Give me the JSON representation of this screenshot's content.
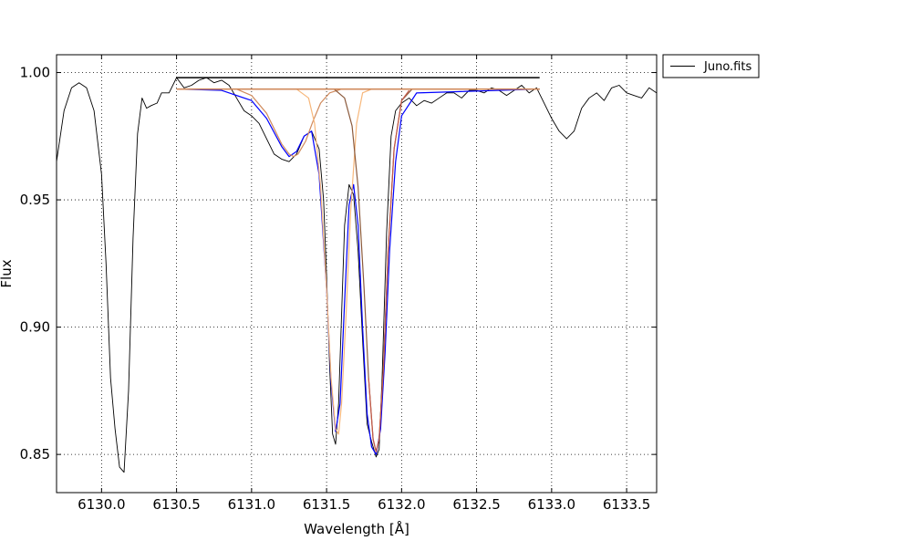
{
  "chart_data": {
    "type": "line",
    "title": "",
    "xlabel": "Wavelength [Å]",
    "ylabel": "Flux",
    "xlim": [
      6129.7,
      6133.7
    ],
    "ylim": [
      0.835,
      1.007
    ],
    "xticks": [
      "6130.0",
      "6130.5",
      "6131.0",
      "6131.5",
      "6132.0",
      "6132.5",
      "6133.0",
      "6133.5"
    ],
    "yticks": [
      "0.85",
      "0.90",
      "0.95",
      "1.00"
    ],
    "grid": true,
    "legend": {
      "placement": "outside-top-right",
      "entries": [
        "Juno.fits"
      ]
    },
    "series": [
      {
        "name": "Juno.fits",
        "color": "#000000",
        "x": [
          6129.7,
          6129.75,
          6129.8,
          6129.85,
          6129.9,
          6129.95,
          6130.0,
          6130.03,
          6130.06,
          6130.09,
          6130.12,
          6130.15,
          6130.18,
          6130.21,
          6130.24,
          6130.27,
          6130.3,
          6130.33,
          6130.37,
          6130.4,
          6130.45,
          6130.5,
          6130.55,
          6130.6,
          6130.65,
          6130.7,
          6130.75,
          6130.8,
          6130.85,
          6130.9,
          6130.95,
          6131.0,
          6131.05,
          6131.1,
          6131.15,
          6131.2,
          6131.25,
          6131.3,
          6131.35,
          6131.4,
          6131.45,
          6131.48,
          6131.5,
          6131.52,
          6131.54,
          6131.56,
          6131.58,
          6131.6,
          6131.62,
          6131.65,
          6131.68,
          6131.71,
          6131.74,
          6131.77,
          6131.8,
          6131.83,
          6131.85,
          6131.87,
          6131.9,
          6131.93,
          6131.96,
          6132.0,
          6132.05,
          6132.1,
          6132.15,
          6132.2,
          6132.25,
          6132.3,
          6132.35,
          6132.4,
          6132.45,
          6132.5,
          6132.55,
          6132.6,
          6132.65,
          6132.7,
          6132.75,
          6132.8,
          6132.85,
          6132.9,
          6132.95,
          6133.0,
          6133.05,
          6133.1,
          6133.15,
          6133.2,
          6133.25,
          6133.3,
          6133.35,
          6133.4,
          6133.45,
          6133.5,
          6133.55,
          6133.6,
          6133.65,
          6133.7
        ],
        "y": [
          0.965,
          0.985,
          0.994,
          0.996,
          0.994,
          0.985,
          0.96,
          0.925,
          0.88,
          0.86,
          0.845,
          0.843,
          0.875,
          0.935,
          0.976,
          0.99,
          0.986,
          0.987,
          0.988,
          0.992,
          0.992,
          0.998,
          0.994,
          0.995,
          0.997,
          0.998,
          0.996,
          0.997,
          0.995,
          0.99,
          0.985,
          0.983,
          0.98,
          0.974,
          0.968,
          0.966,
          0.965,
          0.968,
          0.975,
          0.977,
          0.97,
          0.95,
          0.92,
          0.885,
          0.858,
          0.854,
          0.87,
          0.905,
          0.94,
          0.956,
          0.952,
          0.93,
          0.895,
          0.862,
          0.855,
          0.849,
          0.852,
          0.88,
          0.937,
          0.975,
          0.985,
          0.988,
          0.99,
          0.987,
          0.989,
          0.988,
          0.99,
          0.992,
          0.992,
          0.99,
          0.993,
          0.993,
          0.992,
          0.994,
          0.993,
          0.991,
          0.993,
          0.995,
          0.992,
          0.994,
          0.988,
          0.982,
          0.977,
          0.974,
          0.977,
          0.986,
          0.99,
          0.992,
          0.989,
          0.994,
          0.995,
          0.992,
          0.991,
          0.99,
          0.994,
          0.992
        ]
      },
      {
        "name": "",
        "color": "#000000",
        "x": [
          6130.5,
          6132.92
        ],
        "y": [
          0.998,
          0.998
        ]
      },
      {
        "name": "",
        "color": "#0000ff",
        "x": [
          6130.5,
          6130.8,
          6131.0,
          6131.1,
          6131.2,
          6131.25,
          6131.3,
          6131.35,
          6131.4,
          6131.45,
          6131.5,
          6131.53,
          6131.56,
          6131.59,
          6131.62,
          6131.65,
          6131.68,
          6131.71,
          6131.74,
          6131.77,
          6131.8,
          6131.83,
          6131.86,
          6131.89,
          6131.92,
          6131.96,
          6132.0,
          6132.1,
          6132.92
        ],
        "y": [
          0.9935,
          0.993,
          0.989,
          0.982,
          0.971,
          0.967,
          0.969,
          0.975,
          0.977,
          0.96,
          0.915,
          0.878,
          0.859,
          0.87,
          0.91,
          0.948,
          0.956,
          0.94,
          0.9,
          0.866,
          0.853,
          0.85,
          0.86,
          0.89,
          0.93,
          0.965,
          0.983,
          0.992,
          0.9935
        ]
      },
      {
        "name": "",
        "color": "#d08a5c",
        "x": [
          6130.5,
          6130.9,
          6131.0,
          6131.1,
          6131.15,
          6131.2,
          6131.25,
          6131.28,
          6131.31,
          6131.36,
          6131.41,
          6131.46,
          6131.52,
          6131.6,
          6132.92
        ],
        "y": [
          0.9935,
          0.9935,
          0.991,
          0.984,
          0.978,
          0.972,
          0.968,
          0.967,
          0.968,
          0.973,
          0.981,
          0.988,
          0.992,
          0.9935,
          0.9935
        ]
      },
      {
        "name": "",
        "color": "#f7b77b",
        "x": [
          6130.5,
          6131.3,
          6131.38,
          6131.42,
          6131.46,
          6131.5,
          6131.53,
          6131.56,
          6131.58,
          6131.6,
          6131.63,
          6131.66,
          6131.7,
          6131.74,
          6131.8,
          6132.92
        ],
        "y": [
          0.9935,
          0.9935,
          0.99,
          0.98,
          0.955,
          0.915,
          0.88,
          0.86,
          0.858,
          0.87,
          0.905,
          0.945,
          0.98,
          0.992,
          0.9935,
          0.9935
        ]
      },
      {
        "name": "",
        "color": "#8b5a3c",
        "x": [
          6130.5,
          6131.55,
          6131.62,
          6131.67,
          6131.71,
          6131.75,
          6131.78,
          6131.81,
          6131.83,
          6131.85,
          6131.88,
          6131.91,
          6131.95,
          6132.0,
          6132.07,
          6132.92
        ],
        "y": [
          0.9935,
          0.9935,
          0.99,
          0.979,
          0.955,
          0.915,
          0.88,
          0.856,
          0.851,
          0.856,
          0.885,
          0.93,
          0.97,
          0.989,
          0.9935,
          0.9935
        ]
      },
      {
        "name": "",
        "color": "#c45a4a",
        "x": [
          6131.78,
          6131.81,
          6131.83,
          6131.85,
          6131.88,
          6131.91,
          6131.95,
          6132.0,
          6132.05
        ],
        "y": [
          0.88,
          0.856,
          0.851,
          0.856,
          0.885,
          0.93,
          0.97,
          0.989,
          0.993
        ]
      },
      {
        "name": "",
        "color": "#d08a5c",
        "x": [
          6130.5,
          6132.92
        ],
        "y": [
          0.9935,
          0.9935
        ]
      }
    ]
  }
}
